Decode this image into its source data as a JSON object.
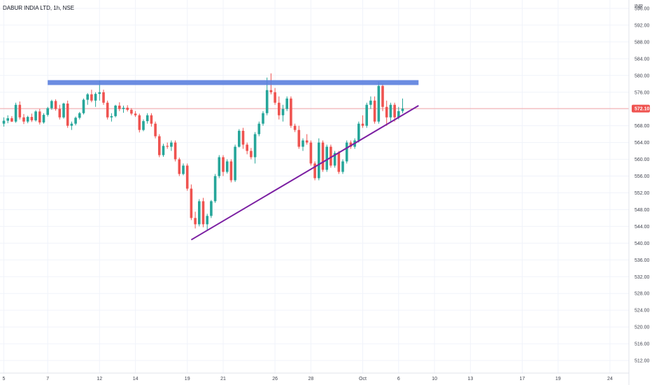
{
  "chart_data": {
    "type": "candlestick",
    "title": "DABUR INDIA LTD, 1h, NSE",
    "unit": "INR",
    "ylim": [
      509,
      598
    ],
    "y_ticks": [
      596,
      592,
      588,
      584,
      580,
      576,
      572,
      568,
      564,
      560,
      556,
      552,
      548,
      544,
      540,
      536,
      532,
      528,
      524,
      520,
      516,
      512
    ],
    "x_ticks": [
      {
        "label": "5",
        "bar": 0
      },
      {
        "label": "7",
        "bar": 11
      },
      {
        "label": "12",
        "bar": 24
      },
      {
        "label": "14",
        "bar": 33
      },
      {
        "label": "19",
        "bar": 46
      },
      {
        "label": "21",
        "bar": 55
      },
      {
        "label": "26",
        "bar": 68
      },
      {
        "label": "28",
        "bar": 77
      },
      {
        "label": "Oct",
        "bar": 90
      },
      {
        "label": "6",
        "bar": 99
      },
      {
        "label": "10",
        "bar": 108
      },
      {
        "label": "13",
        "bar": 117
      },
      {
        "label": "17",
        "bar": 130
      },
      {
        "label": "19",
        "bar": 139
      },
      {
        "label": "24",
        "bar": 152
      }
    ],
    "last_price": "572.10",
    "last_value": 572.1,
    "colors": {
      "up": "#26a69a",
      "down": "#ef5350",
      "resistance": "#5b7fde",
      "trendline": "#7b1fa2",
      "price_line": "#ef5350"
    },
    "candles": [
      [
        568.5,
        570.0,
        567.8,
        569.2
      ],
      [
        569.2,
        570.5,
        568.6,
        569.8
      ],
      [
        569.8,
        570.3,
        568.9,
        569.0
      ],
      [
        569.0,
        573.5,
        568.7,
        573.0
      ],
      [
        573.0,
        573.8,
        569.5,
        570.0
      ],
      [
        570.0,
        570.8,
        568.4,
        569.0
      ],
      [
        569.0,
        570.4,
        568.6,
        570.1
      ],
      [
        570.1,
        570.9,
        568.9,
        569.3
      ],
      [
        569.3,
        571.7,
        569.0,
        571.4
      ],
      [
        571.4,
        572.0,
        568.3,
        568.8
      ],
      [
        568.8,
        571.0,
        568.5,
        570.6
      ],
      [
        570.6,
        572.5,
        570.2,
        572.2
      ],
      [
        572.2,
        574.2,
        571.8,
        573.9
      ],
      [
        573.9,
        574.3,
        571.6,
        572.0
      ],
      [
        572.0,
        573.0,
        569.5,
        570.0
      ],
      [
        570.0,
        573.5,
        569.7,
        573.3
      ],
      [
        573.3,
        574.0,
        567.5,
        568.0
      ],
      [
        568.0,
        569.0,
        567.0,
        568.5
      ],
      [
        568.5,
        570.2,
        568.1,
        569.9
      ],
      [
        569.9,
        571.3,
        569.5,
        571.0
      ],
      [
        571.0,
        574.5,
        570.7,
        574.2
      ],
      [
        574.2,
        575.8,
        573.0,
        575.5
      ],
      [
        575.5,
        576.6,
        573.6,
        574.0
      ],
      [
        574.0,
        576.0,
        572.5,
        575.6
      ],
      [
        575.6,
        578.8,
        574.0,
        576.0
      ],
      [
        576.0,
        576.6,
        573.0,
        573.5
      ],
      [
        573.5,
        574.0,
        569.5,
        570.0
      ],
      [
        570.0,
        571.0,
        569.0,
        570.3
      ],
      [
        570.3,
        573.0,
        570.0,
        572.8
      ],
      [
        572.8,
        573.6,
        571.5,
        572.0
      ],
      [
        572.0,
        572.8,
        571.1,
        572.3
      ],
      [
        572.3,
        572.9,
        571.4,
        571.8
      ],
      [
        571.8,
        572.2,
        570.5,
        570.9
      ],
      [
        570.9,
        571.5,
        570.1,
        570.5
      ],
      [
        570.5,
        570.9,
        566.4,
        567.0
      ],
      [
        567.0,
        569.5,
        566.7,
        569.1
      ],
      [
        569.1,
        571.0,
        568.5,
        570.5
      ],
      [
        570.5,
        571.0,
        567.8,
        568.5
      ],
      [
        568.5,
        569.0,
        565.0,
        565.5
      ],
      [
        565.5,
        566.0,
        560.5,
        561.0
      ],
      [
        561.0,
        563.7,
        560.6,
        563.2
      ],
      [
        563.2,
        564.0,
        562.5,
        563.0
      ],
      [
        563.0,
        564.5,
        562.0,
        564.0
      ],
      [
        564.0,
        564.5,
        559.5,
        560.0
      ],
      [
        560.0,
        560.4,
        556.0,
        556.5
      ],
      [
        556.5,
        559.0,
        556.2,
        558.5
      ],
      [
        558.5,
        559.0,
        552.5,
        553.0
      ],
      [
        553.0,
        554.0,
        545.5,
        546.0
      ],
      [
        546.0,
        547.5,
        543.5,
        544.5
      ],
      [
        544.5,
        550.5,
        544.0,
        550.0
      ],
      [
        550.0,
        550.8,
        543.8,
        544.5
      ],
      [
        544.5,
        547.0,
        543.2,
        546.5
      ],
      [
        546.5,
        550.3,
        546.0,
        550.0
      ],
      [
        550.0,
        556.5,
        549.6,
        556.0
      ],
      [
        556.0,
        561.0,
        555.5,
        560.5
      ],
      [
        560.5,
        561.0,
        556.0,
        557.0
      ],
      [
        557.0,
        560.0,
        556.6,
        559.5
      ],
      [
        559.5,
        560.0,
        554.5,
        555.0
      ],
      [
        555.0,
        563.5,
        554.6,
        563.0
      ],
      [
        563.0,
        567.2,
        562.8,
        566.8
      ],
      [
        566.8,
        567.5,
        562.5,
        563.5
      ],
      [
        563.5,
        564.0,
        561.2,
        562.0
      ],
      [
        562.0,
        562.7,
        560.0,
        560.5
      ],
      [
        560.5,
        566.5,
        559.0,
        566.0
      ],
      [
        566.0,
        569.0,
        565.5,
        568.5
      ],
      [
        568.5,
        571.5,
        568.0,
        571.0
      ],
      [
        571.0,
        579.5,
        570.5,
        576.5
      ],
      [
        576.5,
        580.5,
        575.5,
        576.0
      ],
      [
        576.0,
        577.0,
        573.0,
        573.5
      ],
      [
        573.5,
        575.0,
        569.5,
        570.5
      ],
      [
        570.5,
        573.0,
        569.0,
        572.0
      ],
      [
        572.0,
        575.0,
        571.5,
        574.5
      ],
      [
        574.5,
        575.0,
        567.5,
        568.0
      ],
      [
        568.0,
        568.5,
        566.5,
        567.0
      ],
      [
        567.0,
        568.0,
        562.5,
        563.0
      ],
      [
        563.0,
        565.0,
        562.0,
        564.5
      ],
      [
        564.5,
        566.0,
        563.5,
        564.0
      ],
      [
        564.0,
        564.5,
        558.5,
        559.0
      ],
      [
        559.0,
        559.5,
        555.0,
        555.5
      ],
      [
        555.5,
        565.0,
        555.0,
        564.0
      ],
      [
        564.0,
        564.5,
        557.0,
        557.5
      ],
      [
        557.5,
        563.5,
        557.0,
        563.0
      ],
      [
        563.0,
        563.5,
        558.0,
        558.5
      ],
      [
        558.5,
        562.0,
        558.0,
        561.5
      ],
      [
        561.5,
        562.0,
        556.5,
        557.0
      ],
      [
        557.0,
        560.0,
        556.5,
        559.5
      ],
      [
        559.5,
        564.5,
        559.0,
        564.0
      ],
      [
        564.0,
        564.5,
        562.5,
        563.0
      ],
      [
        563.0,
        565.0,
        562.5,
        564.5
      ],
      [
        564.5,
        569.0,
        564.0,
        568.5
      ],
      [
        568.5,
        570.5,
        567.5,
        568.0
      ],
      [
        568.0,
        573.5,
        567.5,
        573.0
      ],
      [
        573.0,
        575.0,
        572.0,
        574.0
      ],
      [
        574.0,
        575.0,
        568.5,
        569.0
      ],
      [
        569.0,
        578.5,
        568.5,
        577.5
      ],
      [
        577.5,
        578.0,
        571.5,
        572.5
      ],
      [
        572.5,
        574.0,
        568.0,
        570.0
      ],
      [
        570.0,
        573.5,
        569.0,
        573.0
      ],
      [
        573.0,
        573.5,
        569.0,
        570.0
      ],
      [
        570.0,
        572.5,
        569.5,
        571.5
      ],
      [
        571.5,
        574.5,
        571.0,
        572.1
      ]
    ],
    "resistance": {
      "value": 578.3,
      "from_bar": 11,
      "to_bar": 104
    },
    "trendline": {
      "from": {
        "bar": 47,
        "value": 540.8
      },
      "to": {
        "bar": 104,
        "value": 572.8
      }
    }
  }
}
